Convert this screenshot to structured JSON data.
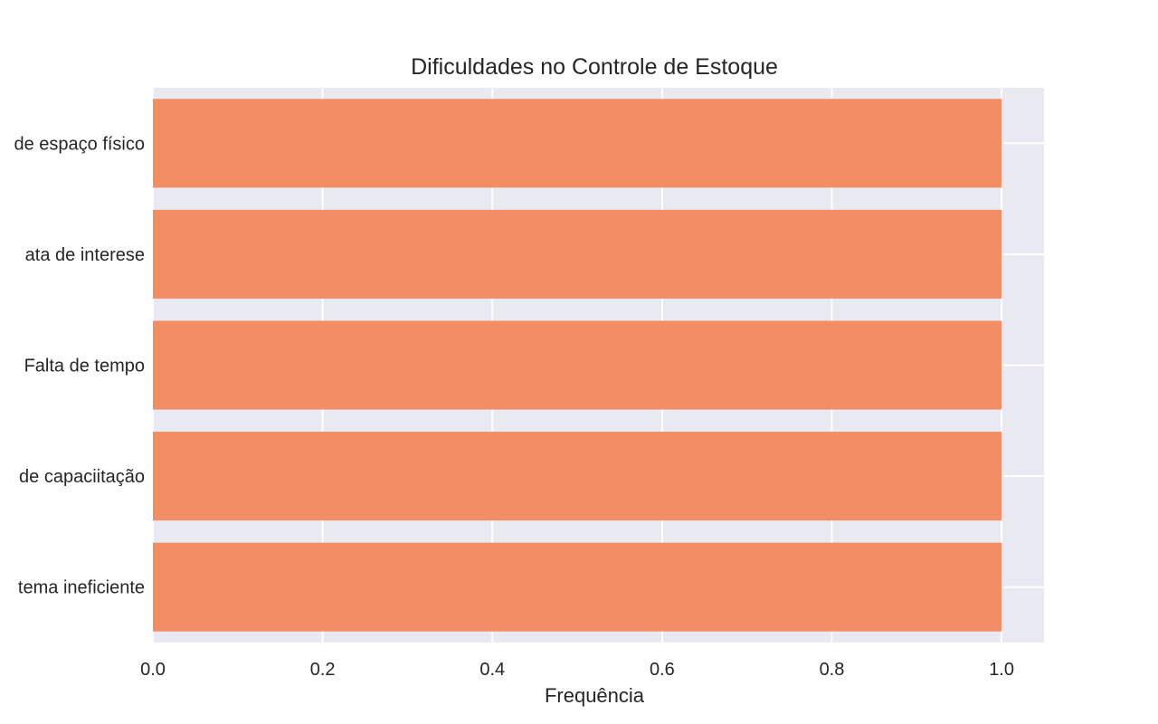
{
  "chart_data": {
    "type": "bar",
    "orientation": "horizontal",
    "title": "Dificuldades no Controle de Estoque",
    "xlabel": "Frequência",
    "ylabel": "",
    "categories": [
      "de espaço físico",
      "ata de interese",
      "Falta de tempo",
      "de capaciitação",
      "tema ineficiente"
    ],
    "values": [
      1,
      1,
      1,
      1,
      1
    ],
    "xlim": [
      0,
      1.05
    ],
    "xticks": [
      "0.0",
      "0.2",
      "0.4",
      "0.6",
      "0.8",
      "1.0"
    ],
    "grid": true,
    "bar_color": "#f38d63",
    "background_color": "#e8e9f1",
    "grid_color": "#ffffff"
  }
}
